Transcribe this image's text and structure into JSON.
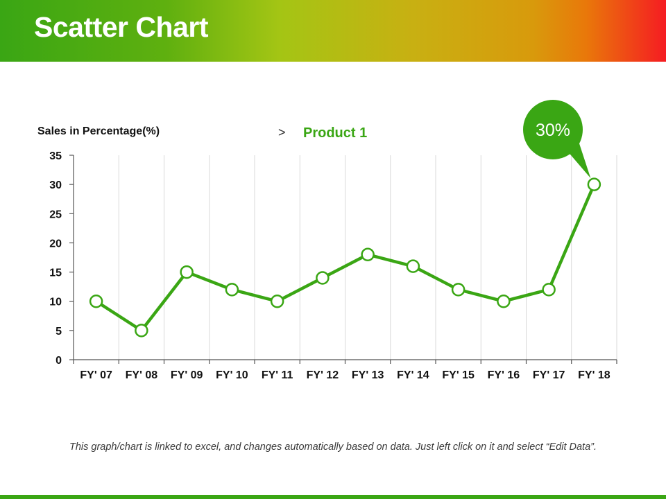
{
  "header": {
    "title": "Scatter Chart"
  },
  "colors": {
    "accent": "#3aa614",
    "grid": "#d9d9d9",
    "text": "#111111",
    "bottom_bar": "#3aa614"
  },
  "footnote": "This graph/chart is linked to excel, and changes automatically based on data. Just left click on it and select “Edit Data”.",
  "chart_data": {
    "type": "line",
    "title": "",
    "ylabel": "Sales in Percentage(%)",
    "xlabel": "",
    "ylim": [
      0,
      35
    ],
    "yticks": [
      0,
      5,
      10,
      15,
      20,
      25,
      30,
      35
    ],
    "categories": [
      "FY' 07",
      "FY' 08",
      "FY' 09",
      "FY' 10",
      "FY' 11",
      "FY' 12",
      "FY' 13",
      "FY' 14",
      "FY' 15",
      "FY' 16",
      "FY' 17",
      "FY' 18"
    ],
    "series": [
      {
        "name": "Product 1",
        "values": [
          10,
          5,
          15,
          12,
          10,
          14,
          18,
          16,
          12,
          10,
          12,
          30
        ]
      }
    ],
    "legend": {
      "marker": ">",
      "label": "Product 1",
      "placement": "top-center"
    },
    "callout": {
      "label": "30%",
      "target_index": 11
    },
    "grid": true
  }
}
